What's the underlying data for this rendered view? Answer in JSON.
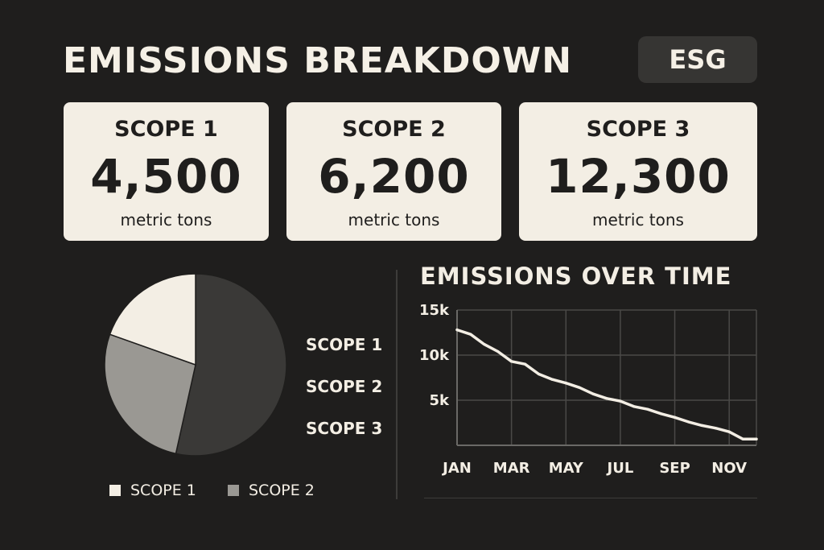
{
  "header": {
    "title": "EMISSIONS BREAKDOWN",
    "badge": "ESG"
  },
  "cards": [
    {
      "label": "SCOPE 1",
      "value": "4,500",
      "unit": "metric tons"
    },
    {
      "label": "SCOPE 2",
      "value": "6,200",
      "unit": "metric tons"
    },
    {
      "label": "SCOPE 3",
      "value": "12,300",
      "unit": "metric tons"
    }
  ],
  "pie_legend": [
    "SCOPE 1",
    "SCOPE 2",
    "SCOPE 3"
  ],
  "bottom_legend": [
    "SCOPE 1",
    "SCOPE 2"
  ],
  "colors": {
    "scope1": "#f3eee4",
    "scope2": "#9a9893",
    "scope3": "#3a3937",
    "background": "#1f1e1d"
  },
  "chart_data": [
    {
      "type": "pie",
      "categories": [
        "SCOPE 1",
        "SCOPE 2",
        "SCOPE 3"
      ],
      "values": [
        4500,
        6200,
        12300
      ],
      "slice_colors": [
        "#f3eee4",
        "#9a9893",
        "#3a3937"
      ]
    },
    {
      "type": "line",
      "title": "EMISSIONS OVER TIME",
      "x_tick_labels": [
        "JAN",
        "MAR",
        "MAY",
        "JUL",
        "SEP",
        "NOV"
      ],
      "y_tick_labels": [
        "15k",
        "10k",
        "5k"
      ],
      "y_ticks": [
        15000,
        10000,
        5000
      ],
      "ylim": [
        0,
        15000
      ],
      "grid": true,
      "series": [
        {
          "x": [
            1,
            1.5,
            2,
            2.5,
            3,
            3.5,
            4,
            4.5,
            5,
            5.5,
            6,
            6.5,
            7,
            7.5,
            8,
            8.5,
            9,
            9.5,
            10,
            10.5,
            11,
            11.5,
            12
          ],
          "values": [
            12800,
            12300,
            11200,
            10400,
            9300,
            9000,
            7900,
            7300,
            6900,
            6400,
            5700,
            5200,
            4900,
            4300,
            4000,
            3500,
            3100,
            2600,
            2200,
            1900,
            1500,
            700,
            700
          ]
        }
      ]
    }
  ]
}
